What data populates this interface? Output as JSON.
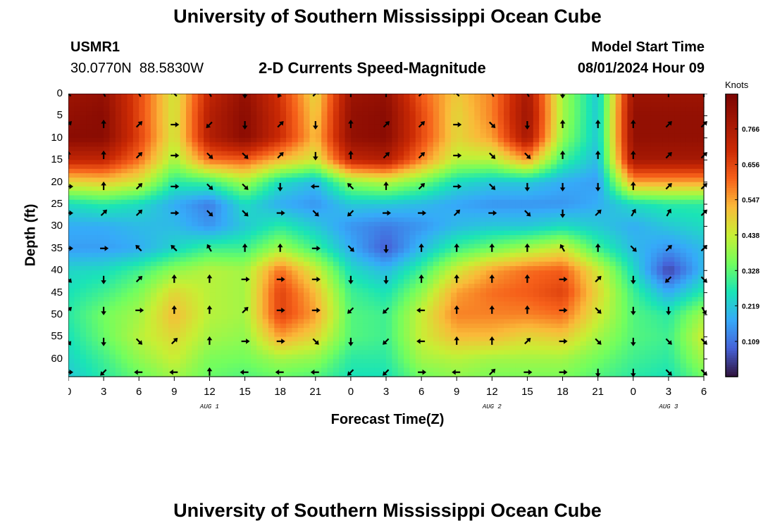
{
  "header": {
    "title": "University of Southern Mississippi Ocean Cube",
    "station_id": "USMR1",
    "coordinates": "30.0770N  88.5830W",
    "subtitle": "2-D Currents Speed-Magnitude",
    "model_start_label": "Model Start Time",
    "model_start_value": "08/01/2024 Hour 09"
  },
  "footer": {
    "title": "University of Southern Mississippi Ocean Cube"
  },
  "colorbar": {
    "label": "Knots",
    "ticks": [
      "0.766",
      "0.656",
      "0.547",
      "0.438",
      "0.328",
      "0.219",
      "0.109"
    ],
    "tick_values": [
      0.766,
      0.656,
      0.547,
      0.438,
      0.328,
      0.219,
      0.109
    ],
    "range": [
      0.0,
      0.875
    ]
  },
  "chart_data": {
    "type": "heatmap",
    "title": "2-D Currents Speed-Magnitude",
    "xlabel": "Forecast Time(Z)",
    "ylabel": "Depth (ft)",
    "x_ticks": [
      "0",
      "3",
      "6",
      "9",
      "12",
      "15",
      "18",
      "21",
      "0",
      "3",
      "6",
      "9",
      "12",
      "15",
      "18",
      "21",
      "0",
      "3",
      "6"
    ],
    "x_tick_hours": [
      0,
      3,
      6,
      9,
      12,
      15,
      18,
      21,
      24,
      27,
      30,
      33,
      36,
      39,
      42,
      45,
      48,
      51,
      54
    ],
    "x_range_hours": [
      0,
      54
    ],
    "day_labels": [
      {
        "label": "AUG 1",
        "hour": 12
      },
      {
        "label": "AUG 2",
        "hour": 36
      },
      {
        "label": "AUG 3",
        "hour": 51
      }
    ],
    "y_ticks": [
      "0",
      "5",
      "10",
      "15",
      "20",
      "25",
      "30",
      "35",
      "40",
      "45",
      "50",
      "55",
      "60"
    ],
    "y_tick_values": [
      0,
      5,
      10,
      15,
      20,
      25,
      30,
      35,
      40,
      45,
      50,
      55,
      60
    ],
    "y_range_ft": [
      0,
      64
    ],
    "value_unit": "Knots",
    "value_range": [
      0.0,
      0.875
    ],
    "hours": [
      0,
      3,
      6,
      9,
      12,
      15,
      18,
      21,
      24,
      27,
      30,
      33,
      36,
      39,
      42,
      45,
      48,
      51,
      54
    ],
    "depths": [
      0,
      5,
      10,
      15,
      20,
      25,
      30,
      35,
      40,
      45,
      50,
      55,
      60,
      64
    ],
    "speed_grid": [
      [
        0.8,
        0.82,
        0.65,
        0.45,
        0.72,
        0.82,
        0.68,
        0.48,
        0.8,
        0.82,
        0.62,
        0.5,
        0.58,
        0.78,
        0.4,
        0.22,
        0.8,
        0.8,
        0.8
      ],
      [
        0.82,
        0.84,
        0.65,
        0.45,
        0.75,
        0.84,
        0.7,
        0.5,
        0.82,
        0.84,
        0.65,
        0.48,
        0.58,
        0.8,
        0.4,
        0.22,
        0.82,
        0.82,
        0.82
      ],
      [
        0.84,
        0.84,
        0.66,
        0.45,
        0.75,
        0.84,
        0.7,
        0.52,
        0.82,
        0.84,
        0.65,
        0.48,
        0.55,
        0.78,
        0.38,
        0.22,
        0.82,
        0.82,
        0.82
      ],
      [
        0.72,
        0.72,
        0.6,
        0.4,
        0.6,
        0.62,
        0.52,
        0.45,
        0.72,
        0.75,
        0.58,
        0.42,
        0.42,
        0.55,
        0.3,
        0.2,
        0.78,
        0.78,
        0.78
      ],
      [
        0.48,
        0.5,
        0.45,
        0.28,
        0.3,
        0.4,
        0.25,
        0.2,
        0.38,
        0.42,
        0.35,
        0.25,
        0.22,
        0.22,
        0.18,
        0.16,
        0.55,
        0.55,
        0.55
      ],
      [
        0.25,
        0.28,
        0.25,
        0.18,
        0.12,
        0.25,
        0.18,
        0.15,
        0.22,
        0.22,
        0.2,
        0.17,
        0.15,
        0.15,
        0.15,
        0.18,
        0.25,
        0.28,
        0.28
      ],
      [
        0.18,
        0.18,
        0.2,
        0.2,
        0.15,
        0.22,
        0.28,
        0.22,
        0.15,
        0.12,
        0.15,
        0.2,
        0.22,
        0.22,
        0.25,
        0.22,
        0.18,
        0.22,
        0.25
      ],
      [
        0.16,
        0.16,
        0.18,
        0.24,
        0.3,
        0.3,
        0.4,
        0.3,
        0.18,
        0.08,
        0.2,
        0.3,
        0.35,
        0.4,
        0.45,
        0.3,
        0.2,
        0.15,
        0.2
      ],
      [
        0.24,
        0.25,
        0.3,
        0.38,
        0.42,
        0.4,
        0.6,
        0.45,
        0.25,
        0.2,
        0.3,
        0.45,
        0.55,
        0.6,
        0.62,
        0.45,
        0.25,
        0.05,
        0.2
      ],
      [
        0.26,
        0.3,
        0.36,
        0.48,
        0.42,
        0.4,
        0.66,
        0.52,
        0.3,
        0.26,
        0.38,
        0.55,
        0.6,
        0.62,
        0.66,
        0.48,
        0.3,
        0.18,
        0.28
      ],
      [
        0.28,
        0.35,
        0.4,
        0.52,
        0.42,
        0.4,
        0.66,
        0.55,
        0.32,
        0.3,
        0.44,
        0.58,
        0.58,
        0.58,
        0.6,
        0.45,
        0.32,
        0.28,
        0.4
      ],
      [
        0.26,
        0.34,
        0.42,
        0.48,
        0.4,
        0.38,
        0.55,
        0.48,
        0.32,
        0.3,
        0.44,
        0.52,
        0.52,
        0.48,
        0.5,
        0.4,
        0.32,
        0.3,
        0.45
      ],
      [
        0.24,
        0.3,
        0.38,
        0.44,
        0.36,
        0.35,
        0.4,
        0.38,
        0.28,
        0.28,
        0.4,
        0.42,
        0.4,
        0.4,
        0.4,
        0.35,
        0.3,
        0.28,
        0.4
      ],
      [
        0.22,
        0.28,
        0.34,
        0.4,
        0.34,
        0.32,
        0.34,
        0.32,
        0.26,
        0.26,
        0.35,
        0.38,
        0.36,
        0.36,
        0.36,
        0.32,
        0.28,
        0.26,
        0.35
      ]
    ],
    "vector_hours": [
      0,
      3,
      6,
      9,
      12,
      15,
      18,
      21,
      24,
      27,
      30,
      33,
      36,
      39,
      42,
      45,
      48,
      51,
      54
    ],
    "vector_depths": [
      0,
      7,
      14,
      21,
      27,
      35,
      42,
      49,
      56,
      63
    ],
    "vector_directions_deg": [
      [
        315,
        330,
        330,
        315,
        330,
        180,
        210,
        45,
        0,
        0,
        45,
        315,
        330,
        330,
        180,
        0,
        0,
        0,
        0
      ],
      [
        45,
        0,
        45,
        90,
        225,
        180,
        45,
        180,
        0,
        45,
        45,
        90,
        135,
        180,
        0,
        0,
        0,
        45,
        45
      ],
      [
        0,
        0,
        45,
        90,
        135,
        135,
        45,
        180,
        0,
        45,
        45,
        90,
        135,
        135,
        0,
        0,
        0,
        45,
        45
      ],
      [
        90,
        0,
        45,
        90,
        135,
        135,
        180,
        270,
        315,
        0,
        45,
        90,
        135,
        180,
        180,
        180,
        0,
        45,
        45
      ],
      [
        90,
        45,
        45,
        90,
        135,
        135,
        90,
        135,
        225,
        90,
        90,
        45,
        90,
        135,
        180,
        45,
        30,
        30,
        45
      ],
      [
        90,
        90,
        315,
        315,
        330,
        0,
        0,
        90,
        135,
        180,
        0,
        0,
        0,
        0,
        330,
        0,
        135,
        45,
        45
      ],
      [
        135,
        180,
        45,
        0,
        0,
        90,
        90,
        90,
        180,
        180,
        0,
        0,
        0,
        0,
        90,
        45,
        180,
        225,
        135
      ],
      [
        45,
        180,
        90,
        0,
        0,
        45,
        90,
        90,
        225,
        225,
        270,
        0,
        0,
        0,
        90,
        135,
        180,
        180,
        150
      ],
      [
        150,
        180,
        135,
        45,
        0,
        90,
        90,
        135,
        180,
        225,
        270,
        0,
        0,
        45,
        90,
        135,
        180,
        135,
        135
      ],
      [
        90,
        225,
        270,
        270,
        0,
        270,
        270,
        270,
        225,
        225,
        90,
        270,
        45,
        90,
        90,
        180,
        180,
        135,
        135
      ]
    ]
  }
}
